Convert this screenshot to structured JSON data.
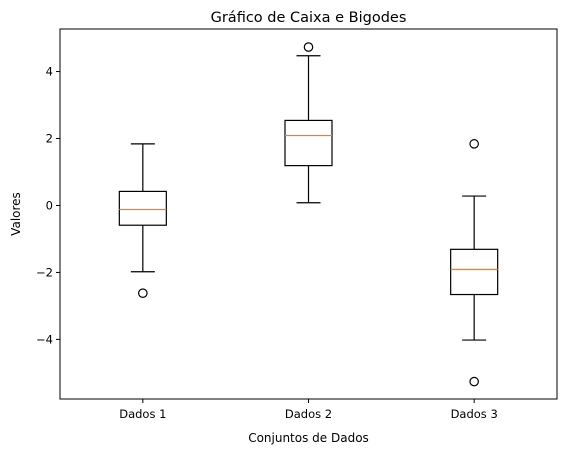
{
  "chart_data": {
    "type": "box",
    "title": "Gráfico de Caixa e Bigodes",
    "xlabel": "Conjuntos de Dados",
    "ylabel": "Valores",
    "ylim": [
      -5.78,
      5.27
    ],
    "yticks": [
      -4,
      -2,
      0,
      2,
      4
    ],
    "categories": [
      "Dados 1",
      "Dados 2",
      "Dados 3"
    ],
    "series": [
      {
        "name": "Dados 1",
        "whisker_low": -1.98,
        "q1": -0.59,
        "median": -0.12,
        "q3": 0.42,
        "whisker_high": 1.84,
        "outliers": [
          -2.62
        ]
      },
      {
        "name": "Dados 2",
        "whisker_low": 0.08,
        "q1": 1.19,
        "median": 2.09,
        "q3": 2.54,
        "whisker_high": 4.47,
        "outliers": [
          4.73
        ]
      },
      {
        "name": "Dados 3",
        "whisker_low": -4.02,
        "q1": -2.66,
        "median": -1.91,
        "q3": -1.31,
        "whisker_high": 0.28,
        "outliers": [
          1.84,
          -5.26
        ]
      }
    ],
    "colors": {
      "box": "#000000",
      "median": "#ff7f0e",
      "flier": "#000000"
    },
    "grid": false,
    "legend": "none"
  }
}
